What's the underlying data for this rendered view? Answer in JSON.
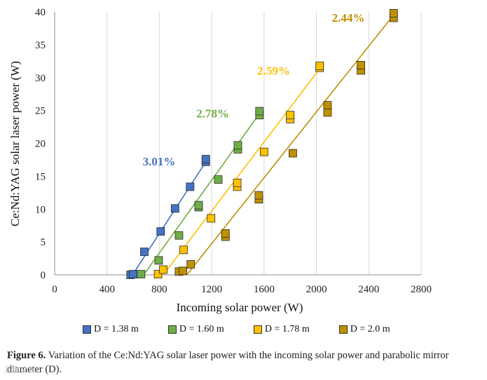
{
  "chart_data": {
    "type": "scatter",
    "xlabel": "Incoming solar power (W)",
    "ylabel": "Ce:Nd:YAG solar laser power (W)",
    "xlim": [
      0,
      2800
    ],
    "ylim": [
      0,
      40
    ],
    "xticks": [
      "0",
      "400",
      "800",
      "1200",
      "1600",
      "2000",
      "2400",
      "2800"
    ],
    "yticks": [
      "0",
      "5",
      "10",
      "15",
      "20",
      "25",
      "30",
      "35",
      "40"
    ],
    "grid": "vertical",
    "legend_position": "bottom",
    "series": [
      {
        "name": "D = 1.38 m",
        "color": "#4472c4",
        "efficiency_label": "3.01%",
        "points": [
          [
            580,
            0
          ],
          [
            600,
            0.1
          ],
          [
            685,
            3.5
          ],
          [
            810,
            6.6
          ],
          [
            920,
            10.1
          ],
          [
            1035,
            13.4
          ],
          [
            1155,
            17.2
          ],
          [
            1155,
            17.6
          ]
        ],
        "fit": [
          [
            595,
            0
          ],
          [
            1165,
            17.5
          ]
        ]
      },
      {
        "name": "D = 1.60 m",
        "color": "#70ad47",
        "efficiency_label": "2.78%",
        "points": [
          [
            660,
            0.1
          ],
          [
            795,
            2.2
          ],
          [
            950,
            6.0
          ],
          [
            1100,
            10.3
          ],
          [
            1100,
            10.6
          ],
          [
            1250,
            14.5
          ],
          [
            1400,
            19.1
          ],
          [
            1400,
            19.7
          ],
          [
            1565,
            24.3
          ],
          [
            1565,
            24.9
          ]
        ],
        "fit": [
          [
            680,
            0
          ],
          [
            1575,
            24.8
          ]
        ]
      },
      {
        "name": "D = 1.78 m",
        "color": "#ffc000",
        "efficiency_label": "2.59%",
        "points": [
          [
            790,
            0.1
          ],
          [
            830,
            0.8
          ],
          [
            985,
            3.8
          ],
          [
            1195,
            8.6
          ],
          [
            1395,
            13.4
          ],
          [
            1395,
            14.0
          ],
          [
            1600,
            18.7
          ],
          [
            1800,
            23.7
          ],
          [
            1800,
            24.3
          ],
          [
            2025,
            31.5
          ],
          [
            2025,
            31.8
          ]
        ],
        "fit": [
          [
            830,
            0
          ],
          [
            2030,
            31.5
          ]
        ]
      },
      {
        "name": "D = 2.0 m",
        "color": "#bf9000",
        "efficiency_label": "2.44%",
        "points": [
          [
            950,
            0.5
          ],
          [
            980,
            0.6
          ],
          [
            1040,
            1.6
          ],
          [
            1305,
            5.8
          ],
          [
            1305,
            6.3
          ],
          [
            1560,
            11.5
          ],
          [
            1560,
            12.1
          ],
          [
            1820,
            18.5
          ],
          [
            2085,
            24.7
          ],
          [
            2085,
            25.8
          ],
          [
            2340,
            31.1
          ],
          [
            2340,
            31.9
          ],
          [
            2590,
            39.1
          ],
          [
            2590,
            39.8
          ]
        ],
        "fit": [
          [
            1010,
            0
          ],
          [
            2600,
            39.8
          ]
        ]
      }
    ]
  },
  "caption": {
    "label": "Figure 6.",
    "text": "Variation of the Ce:Nd:YAG solar laser power with the incoming solar power and parabolic mirror diameter (D)."
  },
  "watermark": "百度文库"
}
